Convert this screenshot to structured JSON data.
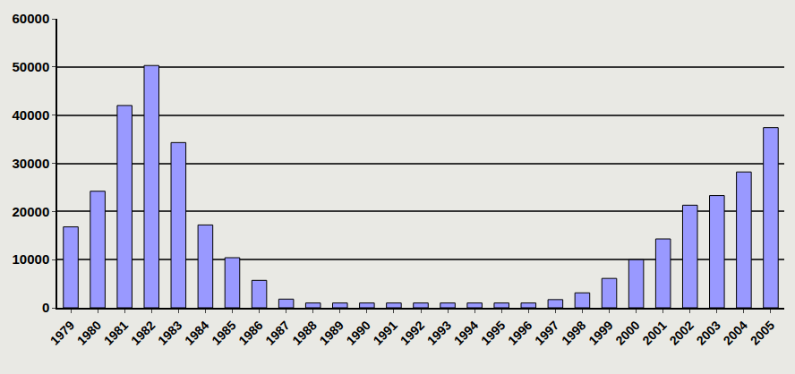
{
  "chart_data": {
    "type": "bar",
    "categories": [
      "1979",
      "1980",
      "1981",
      "1982",
      "1983",
      "1984",
      "1985",
      "1986",
      "1987",
      "1988",
      "1989",
      "1990",
      "1991",
      "1992",
      "1993",
      "1994",
      "1995",
      "1996",
      "1997",
      "1998",
      "1999",
      "2000",
      "2001",
      "2002",
      "2003",
      "2004",
      "2005"
    ],
    "values": [
      16800,
      24200,
      42000,
      50300,
      34300,
      17200,
      10400,
      5700,
      1800,
      1000,
      1000,
      1000,
      1000,
      1000,
      1000,
      1000,
      1000,
      1000,
      1700,
      3100,
      6100,
      10000,
      14300,
      21300,
      23300,
      28200,
      37400
    ],
    "color": "#9999ff",
    "ylim": [
      0,
      60000
    ],
    "yticks": [
      0,
      10000,
      20000,
      30000,
      40000,
      50000,
      60000
    ],
    "grid": true
  }
}
